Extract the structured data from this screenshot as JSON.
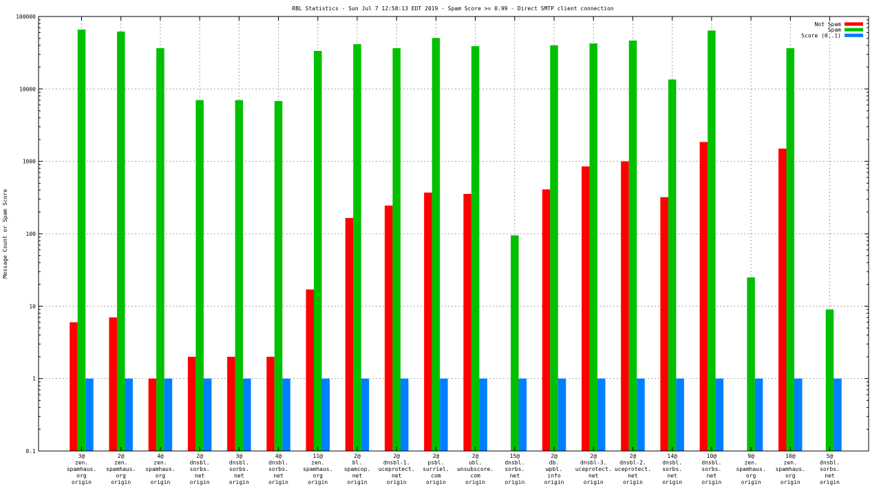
{
  "chart_data": {
    "type": "bar",
    "title": "RBL Statistics - Sun Jul  7 12:58:13 EDT 2019 - Spam Score >= 0.99 - Direct SMTP client connection",
    "xlabel": "",
    "ylabel": "Message Count or Spam Score",
    "yscale": "log",
    "ylim": [
      0.1,
      100000
    ],
    "yticks": [
      {
        "value": 0.1,
        "label": "0.1"
      },
      {
        "value": 1,
        "label": "1"
      },
      {
        "value": 10,
        "label": "10"
      },
      {
        "value": 100,
        "label": "100"
      },
      {
        "value": 1000,
        "label": "1000"
      },
      {
        "value": 10000,
        "label": "10000"
      },
      {
        "value": 100000,
        "label": "100000"
      }
    ],
    "grid": true,
    "legend_position": "top-right",
    "categories": [
      [
        "3@",
        "zen.",
        "spamhaus.",
        "org",
        "origin"
      ],
      [
        "2@",
        "zen.",
        "spamhaus.",
        "org",
        "origin"
      ],
      [
        "4@",
        "zen.",
        "spamhaus.",
        "org",
        "origin"
      ],
      [
        "2@",
        "dnsbl.",
        "sorbs.",
        "net",
        "origin"
      ],
      [
        "3@",
        "dnsbl.",
        "sorbs.",
        "net",
        "origin"
      ],
      [
        "4@",
        "dnsbl.",
        "sorbs.",
        "net",
        "origin"
      ],
      [
        "11@",
        "zen.",
        "spamhaus.",
        "org",
        "origin"
      ],
      [
        "2@",
        "bl.",
        "spamcop.",
        "net",
        "origin"
      ],
      [
        "2@",
        "dnsbl-1.",
        "uceprotect.",
        "net",
        "origin"
      ],
      [
        "2@",
        "psbl.",
        "surriel.",
        "com",
        "origin"
      ],
      [
        "2@",
        "ubl.",
        "unsubscore.",
        "com",
        "origin"
      ],
      [
        "15@",
        "dnsbl.",
        "sorbs.",
        "net",
        "origin"
      ],
      [
        "2@",
        "db.",
        "wpbl.",
        "info",
        "origin"
      ],
      [
        "2@",
        "dnsbl-3.",
        "uceprotect.",
        "net",
        "origin"
      ],
      [
        "2@",
        "dnsbl-2.",
        "uceprotect.",
        "net",
        "origin"
      ],
      [
        "14@",
        "dnsbl.",
        "sorbs.",
        "net",
        "origin"
      ],
      [
        "10@",
        "dnsbl.",
        "sorbs.",
        "net",
        "origin"
      ],
      [
        "9@",
        "zen.",
        "spamhaus.",
        "org",
        "origin"
      ],
      [
        "10@",
        "zen.",
        "spamhaus.",
        "org",
        "origin"
      ],
      [
        "5@",
        "dnsbl.",
        "sorbs.",
        "net",
        "origin"
      ]
    ],
    "series": [
      {
        "name": "Not Spam",
        "color": "#ff0000",
        "values": [
          6,
          7,
          1,
          2,
          2,
          2,
          17,
          165,
          245,
          370,
          355,
          null,
          410,
          850,
          1000,
          320,
          1850,
          null,
          1500,
          null
        ]
      },
      {
        "name": "Spam",
        "color": "#00c000",
        "values": [
          66000,
          62000,
          36500,
          7000,
          7000,
          6800,
          33500,
          41500,
          36500,
          50500,
          39000,
          95,
          40000,
          42500,
          46500,
          13500,
          64000,
          25,
          36500,
          9
        ]
      },
      {
        "name": "Score (0..1)",
        "color": "#0080ff",
        "values": [
          1,
          1,
          1,
          1,
          1,
          1,
          1,
          1,
          1,
          1,
          1,
          1,
          1,
          1,
          1,
          1,
          1,
          1,
          1,
          1
        ]
      }
    ]
  }
}
